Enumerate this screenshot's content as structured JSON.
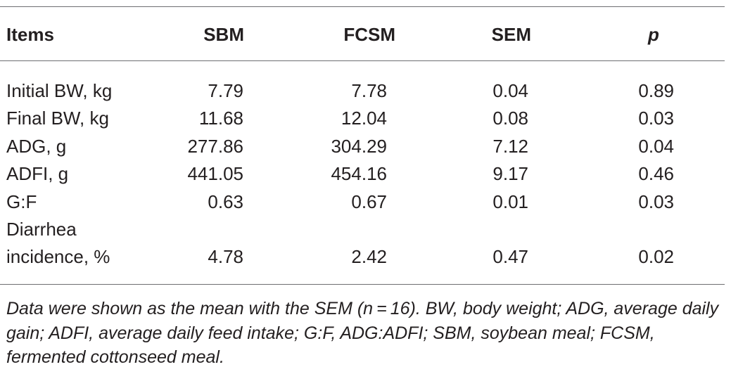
{
  "table": {
    "headers": {
      "items": "Items",
      "sbm": "SBM",
      "fcsm": "FCSM",
      "sem": "SEM",
      "p": "p"
    },
    "rows": [
      {
        "item": "Initial BW, kg",
        "sbm": "7.79",
        "fcsm": "7.78",
        "sem": "0.04",
        "p": "0.89"
      },
      {
        "item": "Final BW, kg",
        "sbm": "11.68",
        "fcsm": "12.04",
        "sem": "0.08",
        "p": "0.03"
      },
      {
        "item": "ADG, g",
        "sbm": "277.86",
        "fcsm": "304.29",
        "sem": "7.12",
        "p": "0.04"
      },
      {
        "item": "ADFI, g",
        "sbm": "441.05",
        "fcsm": "454.16",
        "sem": "9.17",
        "p": "0.46"
      },
      {
        "item": "G:F",
        "sbm": "0.63",
        "fcsm": "0.67",
        "sem": "0.01",
        "p": "0.03"
      },
      {
        "item_line1": "Diarrhea",
        "item_line2": "incidence, %",
        "sbm": "4.78",
        "fcsm": "2.42",
        "sem": "0.47",
        "p": "0.02"
      }
    ]
  },
  "footnote": "Data were shown as the mean with the SEM (n = 16). BW, body weight; ADG, average daily gain; ADFI, average daily feed intake; G:F, ADG:ADFI; SBM, soybean meal; FCSM, fermented cottonseed meal."
}
